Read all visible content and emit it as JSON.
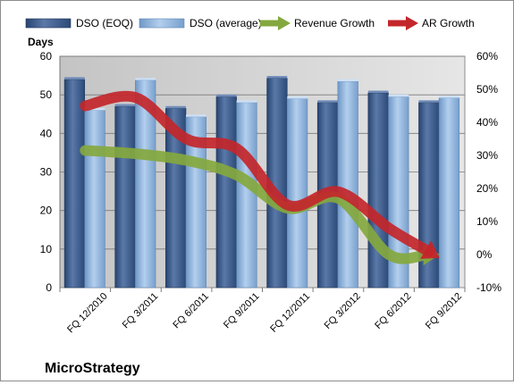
{
  "chart_data": {
    "type": "bar",
    "title": "MicroStrategy",
    "ylabel": "Days",
    "categories": [
      "FQ 12/2010",
      "FQ 3/2011",
      "FQ 6/2011",
      "FQ 9/2011",
      "FQ 12/2011",
      "FQ 3/2012",
      "FQ 6/2012",
      "FQ 9/2012"
    ],
    "ylim": [
      0,
      60
    ],
    "yticks": [
      0,
      10,
      20,
      30,
      40,
      50,
      60
    ],
    "y2lim": [
      -10,
      60
    ],
    "y2ticks": [
      "-10%",
      "0%",
      "10%",
      "20%",
      "30%",
      "40%",
      "50%",
      "60%"
    ],
    "y2tick_values": [
      -10,
      0,
      10,
      20,
      30,
      40,
      50,
      60
    ],
    "legend_position": "top",
    "grid": true,
    "bar_series": [
      {
        "name": "DSO (EOQ)",
        "values": [
          54,
          47,
          46.5,
          49.5,
          54.3,
          48,
          50.5,
          48
        ],
        "color": "#3d5a8a"
      },
      {
        "name": "DSO (average)",
        "values": [
          46,
          53.8,
          44.3,
          48,
          49,
          53.5,
          49.5,
          49.2
        ],
        "color": "#8eb2d8"
      }
    ],
    "line_series": [
      {
        "name": "Revenue Growth",
        "axis": "right",
        "values": [
          31.5,
          30.5,
          28.5,
          24,
          14,
          17,
          0,
          0
        ],
        "color": "#84a83e"
      },
      {
        "name": "AR Growth",
        "axis": "right",
        "values": [
          45,
          47.5,
          35,
          32,
          15,
          19,
          8,
          -1
        ],
        "color": "#c3262a"
      }
    ]
  }
}
